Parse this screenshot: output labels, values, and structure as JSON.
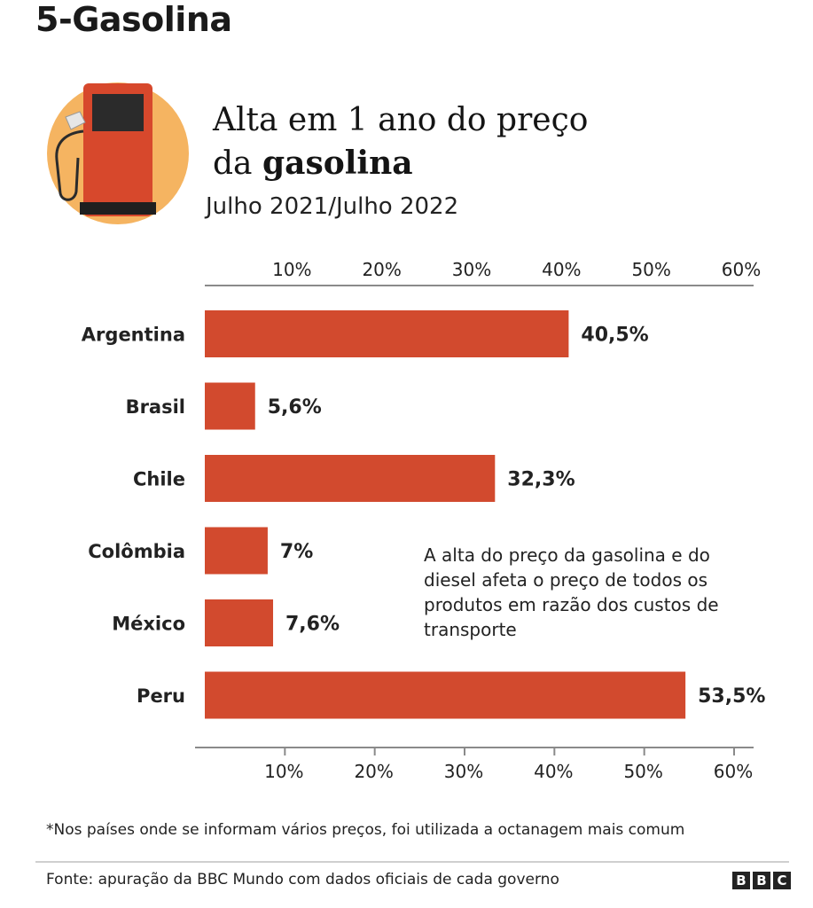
{
  "page": {
    "heading": "5-Gasolina"
  },
  "chart_data": {
    "type": "bar",
    "orientation": "horizontal",
    "title_line1": "Alta em 1 ano do preço",
    "title_line2_normal": "da ",
    "title_line2_bold": "gasolina",
    "subtitle": "Julho 2021/Julho 2022",
    "categories": [
      "Argentina",
      "Brasil",
      "Chile",
      "Colômbia",
      "México",
      "Peru"
    ],
    "values": [
      40.5,
      5.6,
      32.3,
      7,
      7.6,
      53.5
    ],
    "value_labels": [
      "40,5%",
      "5,6%",
      "32,3%",
      "7%",
      "7,6%",
      "53,5%"
    ],
    "xlim": [
      0,
      60
    ],
    "ticks": [
      10,
      20,
      30,
      40,
      50,
      60
    ],
    "tick_labels": [
      "10%",
      "20%",
      "30%",
      "40%",
      "50%",
      "60%"
    ],
    "bar_color": "#d24a2e",
    "annotation": "A alta do preço da gasolina e do diesel afeta o preço de todos os produtos em razão dos custos de transporte"
  },
  "footnote": "*Nos países onde se informam vários preços, foi utilizada a octanagem mais comum",
  "source": "Fonte: apuração da BBC Mundo com dados oficiais de cada governo",
  "logo": [
    "B",
    "B",
    "C"
  ],
  "colors": {
    "accent": "#d24a2e",
    "icon_circle": "#f5b461",
    "pump_body": "#d7482c",
    "pump_screen": "#2b2b2b"
  },
  "icons": {
    "pump": "gas-pump-icon"
  }
}
